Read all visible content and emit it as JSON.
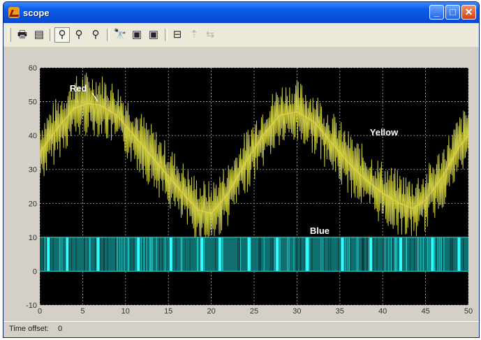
{
  "window": {
    "title": "scope"
  },
  "toolbar": {
    "items": [
      {
        "name": "print-icon",
        "glyph": "🖶"
      },
      {
        "name": "parameters-icon",
        "glyph": "▤"
      },
      {
        "name": "zoom-icon",
        "glyph": "⚲"
      },
      {
        "name": "zoom-x-icon",
        "glyph": "⚲"
      },
      {
        "name": "zoom-y-icon",
        "glyph": "⚲"
      },
      {
        "name": "autoscale-icon",
        "glyph": "🔭"
      },
      {
        "name": "save-axes-icon",
        "glyph": "▣"
      },
      {
        "name": "restore-axes-icon",
        "glyph": "▣"
      },
      {
        "name": "floating-scope-icon",
        "glyph": "⊟"
      },
      {
        "name": "signal-select-icon",
        "glyph": "⇡"
      },
      {
        "name": "lock-axes-icon",
        "glyph": "⇆"
      }
    ]
  },
  "status": {
    "label": "Time offset:",
    "value": "0"
  },
  "colors": {
    "plot_bg": "#000000",
    "grid": "#e6e6e6",
    "yellow": "#e8e84a",
    "red": "#d06040",
    "cyan": "#20c8c8",
    "label": "#ffffff"
  },
  "chart_data": {
    "type": "line",
    "xlim": [
      0,
      50
    ],
    "ylim": [
      -10,
      60
    ],
    "xticks": [
      "0",
      "5",
      "10",
      "15",
      "20",
      "25",
      "30",
      "35",
      "40",
      "45",
      "50"
    ],
    "yticks": [
      "-10",
      "0",
      "10",
      "20",
      "30",
      "40",
      "50",
      "60"
    ],
    "grid": true,
    "annotations": [
      {
        "text": "Red",
        "x": 3.5,
        "y": 53
      },
      {
        "text": "Yellow",
        "x": 38.5,
        "y": 40
      },
      {
        "text": "Blue",
        "x": 31.5,
        "y": 11
      }
    ],
    "series": [
      {
        "name": "Red",
        "color": "red",
        "x": [
          0,
          2,
          4,
          5.5,
          7,
          9,
          11,
          13,
          15,
          17,
          18.5,
          20,
          22,
          24,
          26,
          28,
          30,
          32,
          34,
          36,
          38,
          40,
          42,
          43.5,
          45,
          47,
          49,
          50
        ],
        "y": [
          35,
          42,
          48,
          49.5,
          49,
          46,
          40,
          34,
          28,
          22,
          18,
          17,
          23,
          32,
          40,
          46,
          47,
          44,
          38,
          32,
          27,
          23,
          20,
          18.5,
          21,
          28,
          37,
          40
        ]
      },
      {
        "name": "Yellow",
        "color": "yellow",
        "noise_amplitude": 8,
        "x": [
          0,
          2,
          4,
          5.5,
          7,
          9,
          11,
          13,
          15,
          17,
          18.5,
          20,
          22,
          24,
          26,
          28,
          30,
          32,
          34,
          36,
          38,
          40,
          42,
          43.5,
          45,
          47,
          49,
          50
        ],
        "y": [
          35,
          42,
          48,
          49.5,
          49,
          46,
          40,
          34,
          28,
          22,
          18,
          17,
          23,
          32,
          40,
          46,
          47,
          44,
          38,
          32,
          27,
          23,
          20,
          18.5,
          21,
          28,
          37,
          40
        ]
      },
      {
        "name": "Blue",
        "color": "cyan",
        "type": "pulse",
        "low": 0,
        "high": 10,
        "bright_bars_x": [
          1.0,
          3.2,
          6.8,
          11.5,
          15.3,
          18.9,
          21.0,
          24.4,
          27.7,
          31.2,
          35.3,
          38.6,
          42.1,
          45.8,
          48.9
        ]
      }
    ]
  }
}
